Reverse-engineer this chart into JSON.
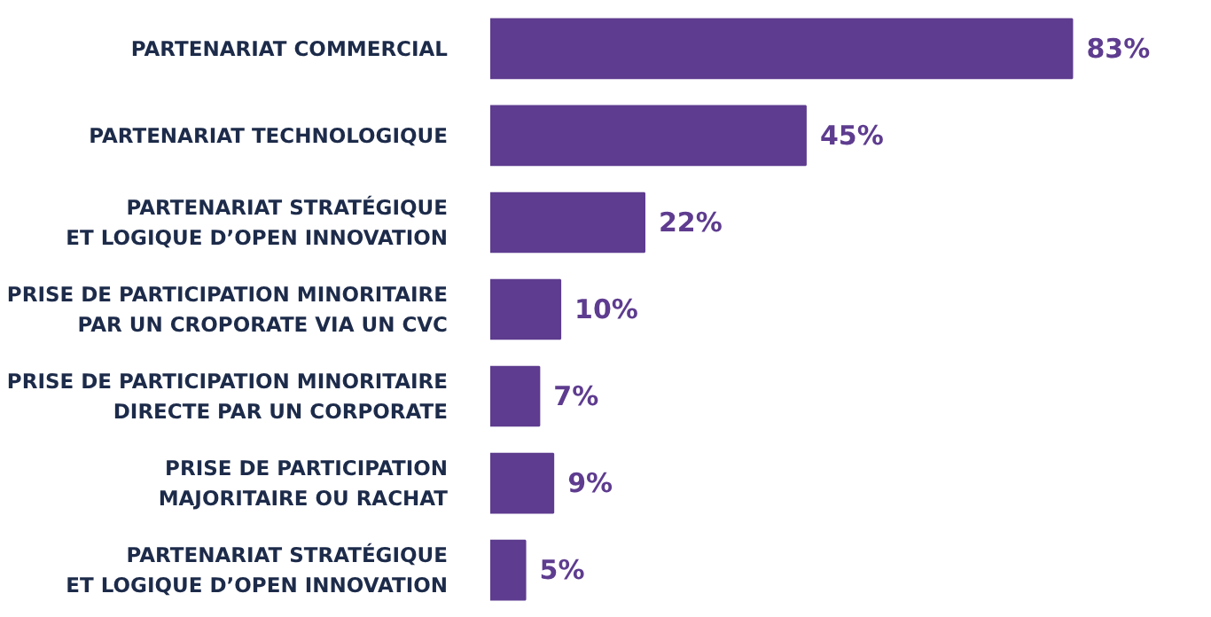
{
  "chart_data": {
    "type": "bar",
    "orientation": "horizontal",
    "categories": [
      "PARTENARIAT COMMERCIAL",
      "PARTENARIAT TECHNOLOGIQUE",
      "PARTENARIAT STRATÉGIQUE\nET LOGIQUE D’OPEN INNOVATION",
      "PRISE DE PARTICIPATION MINORITAIRE\nPAR UN CROPORATE VIA UN CVC",
      "PRISE DE PARTICIPATION MINORITAIRE\nDIRECTE PAR UN CORPORATE",
      "PRISE DE PARTICIPATION\nMAJORITAIRE OU RACHAT",
      "PARTENARIAT STRATÉGIQUE\nET LOGIQUE D’OPEN INNOVATION"
    ],
    "values": [
      83,
      45,
      22,
      10,
      7,
      9,
      5
    ],
    "value_labels": [
      "83%",
      "45%",
      "22%",
      "10%",
      "7%",
      "9%",
      "5%"
    ],
    "color": "#5e3c8f",
    "grid": false
  }
}
